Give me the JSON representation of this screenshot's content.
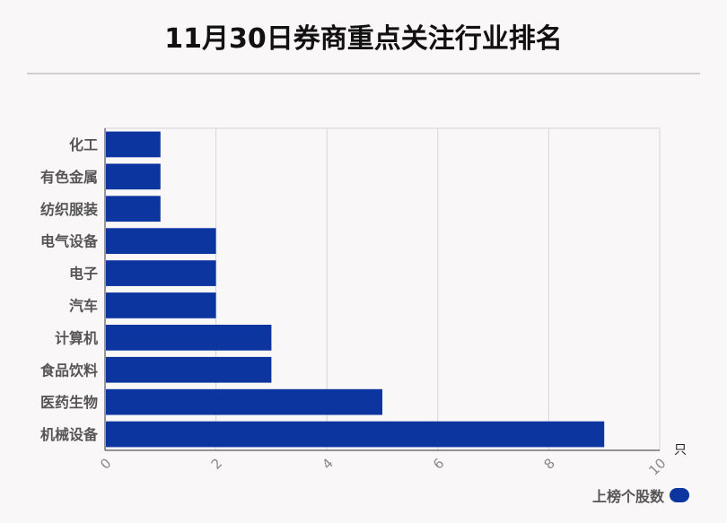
{
  "chart_data": {
    "type": "bar",
    "orientation": "horizontal",
    "title": "11月30日券商重点关注行业排名",
    "categories": [
      "化工",
      "有色金属",
      "纺织服装",
      "电气设备",
      "电子",
      "汽车",
      "计算机",
      "食品饮料",
      "医药生物",
      "机械设备"
    ],
    "series": [
      {
        "name": "上榜个股数",
        "values": [
          1,
          1,
          1,
          2,
          2,
          2,
          3,
          3,
          5,
          9
        ],
        "color": "#0c35a0"
      }
    ],
    "xlim": [
      0,
      10
    ],
    "xticks": [
      "0",
      "2",
      "4",
      "6",
      "8",
      "10"
    ],
    "xunit": "只",
    "grid": true,
    "legend": "bottom-right"
  }
}
